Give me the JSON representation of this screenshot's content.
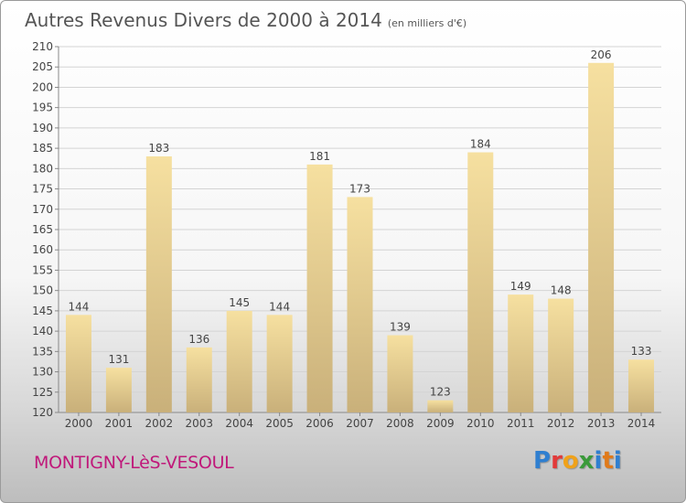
{
  "title": "Autres Revenus Divers de 2000 à 2014",
  "unit": "(en milliers d'€)",
  "city": "MONTIGNY-LèS-VESOUL",
  "brand": {
    "name": "Proxiti",
    "colors": [
      "#2f7fd0",
      "#e23a3a",
      "#f0a21a",
      "#3a9a3a",
      "#2f7fd0",
      "#e07a1a",
      "#2f7fd0"
    ]
  },
  "colors": {
    "bar_light": "#f6e0a0",
    "bar_dark": "#c9b07a",
    "city": "#c0187a"
  },
  "chart_data": {
    "type": "bar",
    "categories": [
      "2000",
      "2001",
      "2002",
      "2003",
      "2004",
      "2005",
      "2006",
      "2007",
      "2008",
      "2009",
      "2010",
      "2011",
      "2012",
      "2013",
      "2014"
    ],
    "values": [
      144,
      131,
      183,
      136,
      145,
      144,
      181,
      173,
      139,
      123,
      184,
      149,
      148,
      206,
      133
    ],
    "ylim": [
      120,
      210
    ],
    "yticks": [
      120,
      125,
      130,
      135,
      140,
      145,
      150,
      155,
      160,
      165,
      170,
      175,
      180,
      185,
      190,
      195,
      200,
      205,
      210
    ],
    "grid": true,
    "data_labels": true
  }
}
